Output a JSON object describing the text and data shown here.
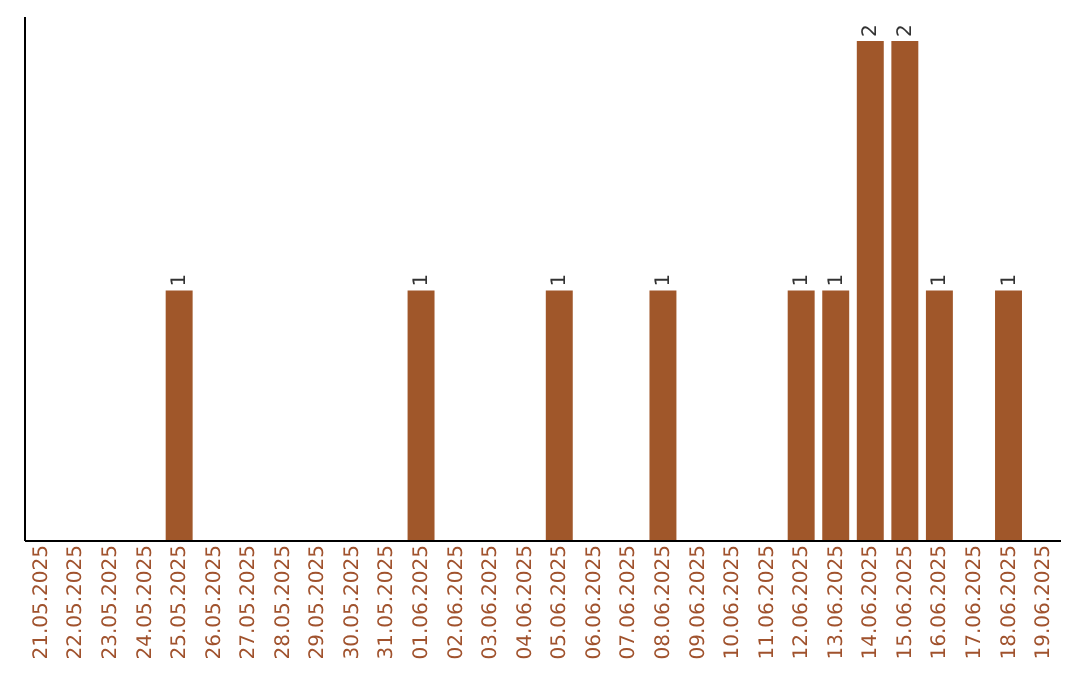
{
  "chart_data": {
    "type": "bar",
    "categories": [
      "21.05.2025",
      "22.05.2025",
      "23.05.2025",
      "24.05.2025",
      "25.05.2025",
      "26.05.2025",
      "27.05.2025",
      "28.05.2025",
      "29.05.2025",
      "30.05.2025",
      "31.05.2025",
      "01.06.2025",
      "02.06.2025",
      "03.06.2025",
      "04.06.2025",
      "05.06.2025",
      "06.06.2025",
      "07.06.2025",
      "08.06.2025",
      "09.06.2025",
      "10.06.2025",
      "11.06.2025",
      "12.06.2025",
      "13.06.2025",
      "14.06.2025",
      "15.06.2025",
      "16.06.2025",
      "17.06.2025",
      "18.06.2025",
      "19.06.2025"
    ],
    "values": [
      0,
      0,
      0,
      0,
      1,
      0,
      0,
      0,
      0,
      0,
      0,
      1,
      0,
      0,
      0,
      1,
      0,
      0,
      1,
      0,
      0,
      0,
      1,
      1,
      2,
      2,
      1,
      0,
      1,
      0
    ],
    "color": "#a0572a",
    "ylim": [
      0,
      2.1
    ],
    "value_labels": [
      null,
      null,
      null,
      null,
      "1",
      null,
      null,
      null,
      null,
      null,
      null,
      "1",
      null,
      null,
      null,
      "1",
      null,
      null,
      "1",
      null,
      null,
      null,
      "1",
      "1",
      "2",
      "2",
      "1",
      null,
      "1",
      null
    ],
    "tick_labels": "x"
  }
}
